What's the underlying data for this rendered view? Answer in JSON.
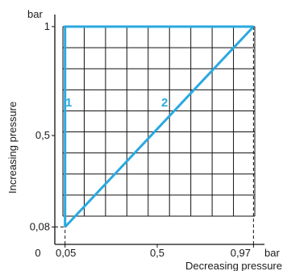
{
  "chart_data": {
    "type": "line",
    "title": "",
    "xlabel": "Decreasing pressure",
    "ylabel": "Increasing pressure",
    "x_unit": "bar",
    "y_unit": "bar",
    "xlim": [
      0,
      1
    ],
    "ylim": [
      0,
      1
    ],
    "x_ticks": [
      {
        "value": 0,
        "label": "0"
      },
      {
        "value": 0.05,
        "label": "0,05"
      },
      {
        "value": 0.5,
        "label": "0,5"
      },
      {
        "value": 0.97,
        "label": "0,97"
      }
    ],
    "y_ticks": [
      {
        "value": 0.08,
        "label": "0,08"
      },
      {
        "value": 0.5,
        "label": "0,5"
      },
      {
        "value": 1,
        "label": "1"
      }
    ],
    "grid": true,
    "series": [
      {
        "name": "1",
        "color": "#29a9e0",
        "points": [
          [
            0.05,
            0.08
          ],
          [
            0.05,
            1
          ],
          [
            0.97,
            1
          ]
        ]
      },
      {
        "name": "2",
        "color": "#29a9e0",
        "points": [
          [
            0.05,
            0.08
          ],
          [
            0.97,
            1
          ]
        ]
      }
    ],
    "reference_lines": [
      {
        "axis": "x",
        "value": 0.05,
        "style": "dashed"
      },
      {
        "axis": "x",
        "value": 0.97,
        "style": "dashed"
      },
      {
        "axis": "y",
        "value": 0.08,
        "style": "dashed"
      }
    ]
  }
}
